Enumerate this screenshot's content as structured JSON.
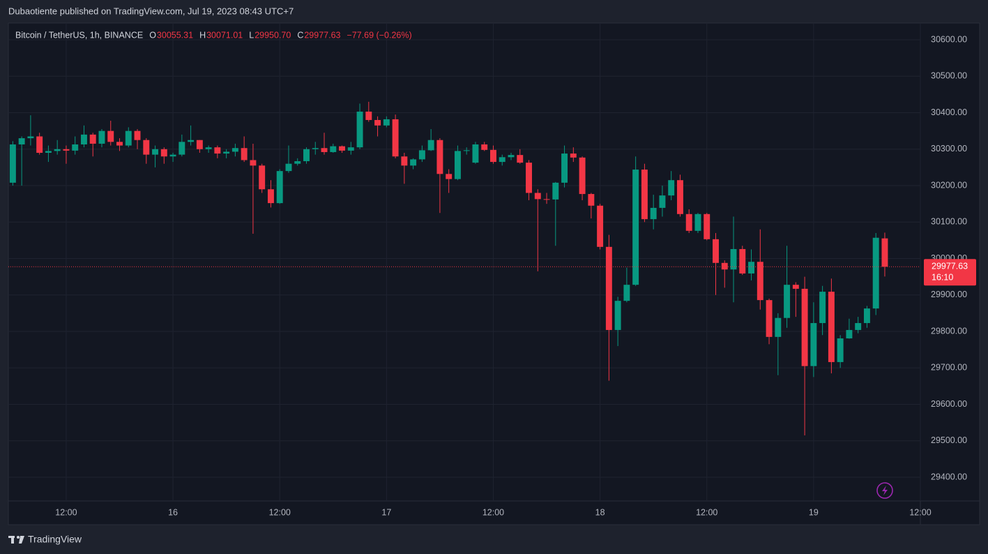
{
  "publisher": "Dubaotiente published on TradingView.com, Jul 19, 2023 08:43 UTC+7",
  "brand": "TradingView",
  "chart_data": {
    "type": "candlestick",
    "title": "Bitcoin / TetherUS, 1h, BINANCE",
    "ohlc_letters": [
      "O",
      "H",
      "L",
      "C"
    ],
    "last_labels": [
      "30055.31",
      "30071.01",
      "29950.70",
      "29977.63"
    ],
    "change": "−77.69 (−0.26%)",
    "countdown": "16:10",
    "up_color": "#089981",
    "down_color": "#f23645",
    "grid": true,
    "x": [
      0,
      1,
      2,
      3,
      4,
      5,
      6,
      7,
      8,
      9,
      10,
      11,
      12,
      13,
      14,
      15,
      16,
      17,
      18,
      19,
      20,
      21,
      22,
      23,
      24,
      25,
      26,
      27,
      28,
      29,
      30,
      31,
      32,
      33,
      34,
      35,
      36,
      37,
      38,
      39,
      40,
      41,
      42,
      43,
      44,
      45,
      46,
      47,
      48,
      49,
      50,
      51,
      52,
      53,
      54,
      55,
      56,
      57,
      58,
      59,
      60,
      61,
      62,
      63,
      64,
      65,
      66,
      67,
      68,
      69,
      70,
      71,
      72,
      73,
      74,
      75,
      76,
      77,
      78,
      79,
      80,
      81,
      82,
      83,
      84,
      85,
      86,
      87,
      88,
      89,
      90,
      91,
      92,
      93,
      94,
      95,
      96,
      97,
      98
    ],
    "open": [
      30208,
      30313,
      30330,
      30335,
      30290,
      30295,
      30300,
      30296,
      30313,
      30340,
      30315,
      30350,
      30320,
      30310,
      30350,
      30325,
      30285,
      30300,
      30280,
      30285,
      30320,
      30325,
      30300,
      30305,
      30288,
      30293,
      30303,
      30270,
      30255,
      30190,
      30152,
      30240,
      30260,
      30267,
      30300,
      30303,
      30292,
      30308,
      30296,
      30305,
      30403,
      30380,
      30365,
      30382,
      30280,
      30255,
      30272,
      30297,
      30325,
      30232,
      30218,
      30295,
      30263,
      30313,
      30298,
      30265,
      30278,
      30284,
      30263,
      30180,
      30163,
      30162,
      30208,
      30288,
      30277,
      30177,
      30145,
      30032,
      29804,
      29884,
      29928,
      30244,
      30108,
      30139,
      30173,
      30215,
      30122,
      30076,
      30122,
      30053,
      29988,
      29970,
      30026,
      29959,
      29991,
      29886,
      29785,
      29837,
      29928,
      29917,
      29705,
      29823,
      29909,
      29716,
      29781,
      29804,
      29823,
      29863,
      30055.31
    ],
    "high": [
      30322,
      30335,
      30393,
      30345,
      30310,
      30325,
      30310,
      30335,
      30365,
      30345,
      30355,
      30378,
      30330,
      30360,
      30355,
      30330,
      30310,
      30305,
      30290,
      30340,
      30365,
      30325,
      30310,
      30310,
      30300,
      30315,
      30335,
      30315,
      30260,
      30215,
      30245,
      30310,
      30275,
      30305,
      30320,
      30345,
      30315,
      30310,
      30320,
      30425,
      30430,
      30390,
      30390,
      30395,
      30290,
      30275,
      30310,
      30355,
      30330,
      30245,
      30310,
      30305,
      30320,
      30320,
      30310,
      30285,
      30290,
      30300,
      30270,
      30190,
      30180,
      30210,
      30310,
      30305,
      30280,
      30180,
      30150,
      30065,
      29895,
      29975,
      30280,
      30260,
      30175,
      30200,
      30240,
      30230,
      30135,
      30125,
      30125,
      30070,
      29995,
      30115,
      30035,
      30025,
      30080,
      29890,
      29850,
      30035,
      29935,
      29950,
      29880,
      29925,
      29945,
      29790,
      29835,
      29840,
      29870,
      30070,
      30071.01
    ],
    "low": [
      30200,
      30200,
      30310,
      30285,
      30265,
      30285,
      30260,
      30285,
      30305,
      30280,
      30305,
      30310,
      30295,
      30305,
      30300,
      30260,
      30250,
      30260,
      30265,
      30280,
      30310,
      30290,
      30290,
      30275,
      30275,
      30280,
      30265,
      30068,
      30180,
      30140,
      30150,
      30235,
      30255,
      30260,
      30285,
      30285,
      30290,
      30290,
      30285,
      30300,
      30375,
      30335,
      30360,
      30275,
      30205,
      30245,
      30265,
      30295,
      30125,
      30180,
      30215,
      30285,
      30260,
      30295,
      30260,
      30255,
      30270,
      30260,
      30160,
      29965,
      30150,
      30035,
      30195,
      30265,
      30160,
      30110,
      30025,
      29665,
      29760,
      29880,
      29925,
      30100,
      30080,
      30115,
      30160,
      30115,
      30070,
      30070,
      30050,
      29900,
      29920,
      29880,
      29955,
      29940,
      29860,
      29765,
      29680,
      29810,
      29840,
      29515,
      29675,
      29790,
      29685,
      29700,
      29780,
      29795,
      29810,
      29845,
      29950.7
    ],
    "close": [
      30313,
      30330,
      30335,
      30290,
      30295,
      30300,
      30296,
      30313,
      30340,
      30315,
      30350,
      30320,
      30310,
      30350,
      30325,
      30285,
      30300,
      30280,
      30285,
      30320,
      30325,
      30300,
      30305,
      30288,
      30293,
      30303,
      30270,
      30255,
      30190,
      30152,
      30240,
      30260,
      30267,
      30300,
      30303,
      30292,
      30308,
      30296,
      30305,
      30403,
      30380,
      30365,
      30382,
      30280,
      30255,
      30272,
      30297,
      30325,
      30232,
      30218,
      30295,
      30297,
      30313,
      30298,
      30265,
      30278,
      30284,
      30263,
      30180,
      30163,
      30162,
      30208,
      30288,
      30277,
      30177,
      30145,
      30032,
      29804,
      29884,
      29928,
      30244,
      30108,
      30139,
      30173,
      30215,
      30122,
      30076,
      30122,
      30053,
      29988,
      29970,
      30026,
      29959,
      29991,
      29886,
      29785,
      29837,
      29928,
      29917,
      29705,
      29823,
      29909,
      29716,
      29781,
      29804,
      29823,
      29863,
      30057,
      29977.63
    ],
    "xlim": [
      -0.5,
      102
    ],
    "xticks": [
      {
        "value": 6,
        "label": "12:00"
      },
      {
        "value": 18,
        "label": "16"
      },
      {
        "value": 30,
        "label": "12:00"
      },
      {
        "value": 42,
        "label": "17"
      },
      {
        "value": 54,
        "label": "12:00"
      },
      {
        "value": 66,
        "label": "18"
      },
      {
        "value": 78,
        "label": "12:00"
      },
      {
        "value": 90,
        "label": "19"
      },
      {
        "value": 102,
        "label": "12:00"
      }
    ],
    "ylim": [
      29335,
      30646
    ],
    "yticks": [
      {
        "value": 29400,
        "label": "29400.00"
      },
      {
        "value": 29500,
        "label": "29500.00"
      },
      {
        "value": 29600,
        "label": "29600.00"
      },
      {
        "value": 29700,
        "label": "29700.00"
      },
      {
        "value": 29800,
        "label": "29800.00"
      },
      {
        "value": 29900,
        "label": "29900.00"
      },
      {
        "value": 30000,
        "label": "30000.00"
      },
      {
        "value": 30100,
        "label": "30100.00"
      },
      {
        "value": 30200,
        "label": "30200.00"
      },
      {
        "value": 30300,
        "label": "30300.00"
      },
      {
        "value": 30400,
        "label": "30400.00"
      },
      {
        "value": 30500,
        "label": "30500.00"
      },
      {
        "value": 30600,
        "label": "30600.00"
      }
    ]
  }
}
